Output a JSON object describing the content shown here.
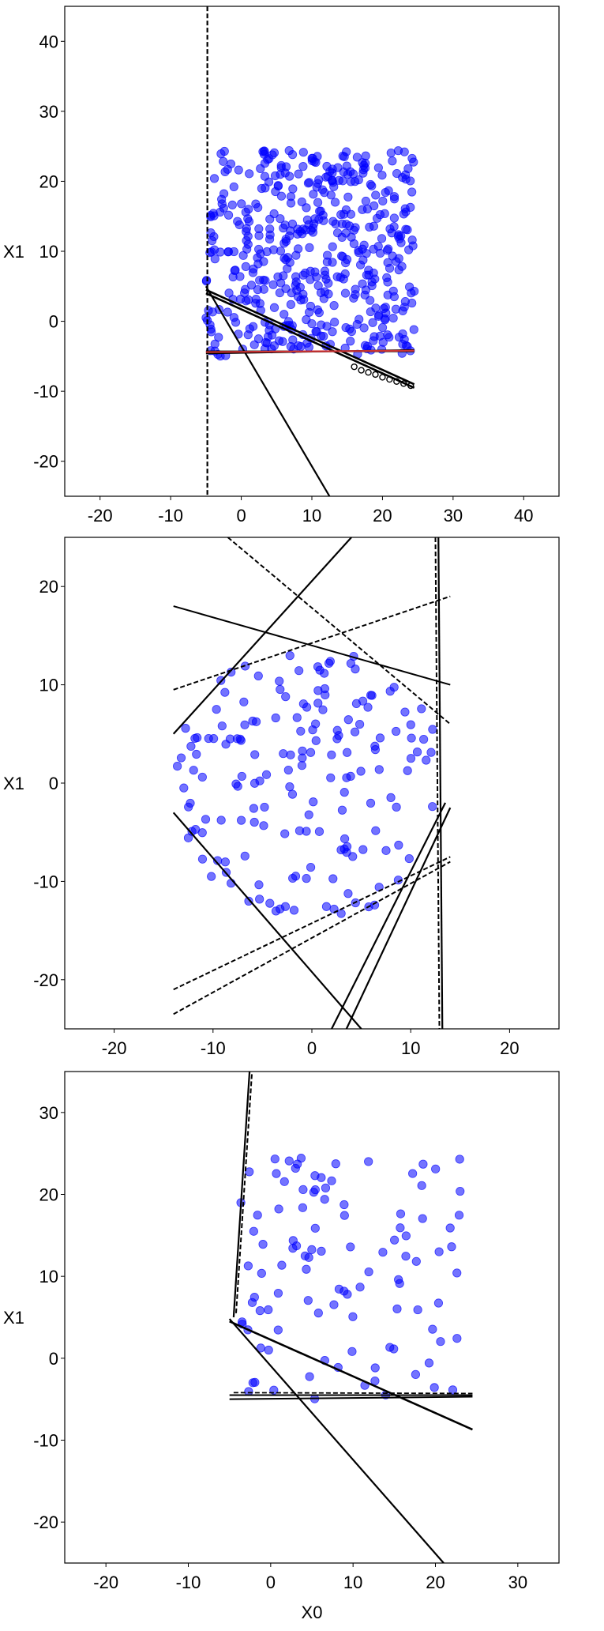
{
  "chart_data": [
    {
      "type": "scatter",
      "xlim": [
        -25,
        45
      ],
      "ylim": [
        -25,
        45
      ],
      "xticks": [
        -20,
        -10,
        0,
        10,
        20,
        30,
        40
      ],
      "yticks": [
        -20,
        -10,
        0,
        10,
        20,
        30,
        40
      ],
      "xlabel": "",
      "ylabel": "X1",
      "grid": false,
      "point_color": "#0000ff",
      "scatter": {
        "distribution": "uniform",
        "count": 480,
        "x_range": [
          -5,
          24.5
        ],
        "y_range": [
          -5,
          24.5
        ],
        "seed": 11
      },
      "lines": [
        {
          "x1": -4.8,
          "y1": 46,
          "x2": -4.8,
          "y2": -26,
          "style": "dashed",
          "color": "#000000",
          "width": 2.2
        },
        {
          "x1": -5,
          "y1": 5,
          "x2": 12.5,
          "y2": -25,
          "style": "solid",
          "color": "#000000",
          "width": 2.2
        },
        {
          "x1": -5,
          "y1": 4.5,
          "x2": 24.5,
          "y2": -9,
          "style": "solid",
          "color": "#000000",
          "width": 2.6
        },
        {
          "x1": -5,
          "y1": 4,
          "x2": 24.5,
          "y2": -9.5,
          "style": "solid",
          "color": "#000000",
          "width": 2.6
        },
        {
          "x1": -5,
          "y1": -4.3,
          "x2": 24.5,
          "y2": -4.3,
          "style": "solid",
          "color": "#000000",
          "width": 2
        },
        {
          "x1": -5,
          "y1": -4.6,
          "x2": 24.5,
          "y2": -4.1,
          "style": "solid",
          "color": "#000000",
          "width": 2
        },
        {
          "x1": -5,
          "y1": -4.4,
          "x2": 24.5,
          "y2": -4.2,
          "style": "solid",
          "color": "#cc3333",
          "width": 2.2
        }
      ],
      "markers": [
        {
          "x": 16,
          "y": -6.5
        },
        {
          "x": 17,
          "y": -7
        },
        {
          "x": 18,
          "y": -7.3
        },
        {
          "x": 19,
          "y": -7.6
        },
        {
          "x": 20,
          "y": -8
        },
        {
          "x": 21,
          "y": -8.3
        },
        {
          "x": 22,
          "y": -8.6
        },
        {
          "x": 23,
          "y": -8.9
        },
        {
          "x": 24,
          "y": -9.2
        }
      ]
    },
    {
      "type": "scatter",
      "xlim": [
        -25,
        25
      ],
      "ylim": [
        -25,
        25
      ],
      "xticks": [
        -20,
        -10,
        0,
        10,
        20
      ],
      "yticks": [
        -20,
        -10,
        0,
        10,
        20
      ],
      "xlabel": "",
      "ylabel": "X1",
      "grid": false,
      "point_color": "#0000ff",
      "scatter": {
        "distribution": "disc",
        "count": 170,
        "center": [
          0,
          0
        ],
        "radius": 14,
        "seed": 23
      },
      "lines": [
        {
          "x1": -14,
          "y1": 5,
          "x2": 4,
          "y2": 25,
          "style": "solid",
          "color": "#000000",
          "width": 2.2
        },
        {
          "x1": -14,
          "y1": 18,
          "x2": 14,
          "y2": 10,
          "style": "solid",
          "color": "#000000",
          "width": 2
        },
        {
          "x1": -14,
          "y1": 9.5,
          "x2": 14,
          "y2": 19,
          "style": "dashed",
          "color": "#000000",
          "width": 2
        },
        {
          "x1": -8.5,
          "y1": 25,
          "x2": 14,
          "y2": 6,
          "style": "dashed",
          "color": "#000000",
          "width": 2
        },
        {
          "x1": 12.8,
          "y1": 25,
          "x2": 13.2,
          "y2": -25,
          "style": "solid",
          "color": "#000000",
          "width": 2.2
        },
        {
          "x1": 12.5,
          "y1": 25,
          "x2": 12.9,
          "y2": -25,
          "style": "dashed",
          "color": "#000000",
          "width": 2
        },
        {
          "x1": -14,
          "y1": -3,
          "x2": 5,
          "y2": -25,
          "style": "solid",
          "color": "#000000",
          "width": 2.2
        },
        {
          "x1": -14,
          "y1": -21,
          "x2": 14,
          "y2": -7.5,
          "style": "dashed",
          "color": "#000000",
          "width": 2
        },
        {
          "x1": -14,
          "y1": -23.5,
          "x2": 14,
          "y2": -8,
          "style": "dashed",
          "color": "#000000",
          "width": 2
        },
        {
          "x1": 2,
          "y1": -25,
          "x2": 13.5,
          "y2": -2,
          "style": "solid",
          "color": "#000000",
          "width": 2.2
        },
        {
          "x1": 3.5,
          "y1": -25,
          "x2": 14,
          "y2": -2.5,
          "style": "solid",
          "color": "#000000",
          "width": 2.2
        }
      ],
      "markers": []
    },
    {
      "type": "scatter",
      "xlim": [
        -25,
        35
      ],
      "ylim": [
        -25,
        35
      ],
      "xticks": [
        -20,
        -10,
        0,
        10,
        20,
        30
      ],
      "yticks": [
        -20,
        -10,
        0,
        10,
        20,
        30
      ],
      "xlabel": "X0",
      "ylabel": "X1",
      "grid": false,
      "point_color": "#0000ff",
      "scatter": {
        "distribution": "uniform",
        "count": 105,
        "x_range": [
          -4,
          24.5
        ],
        "y_range": [
          -5,
          24.5
        ],
        "seed": 37
      },
      "lines": [
        {
          "x1": -4.5,
          "y1": 5,
          "x2": -2.5,
          "y2": 36,
          "style": "solid",
          "color": "#000000",
          "width": 2.2
        },
        {
          "x1": -4.2,
          "y1": 5.5,
          "x2": -2.2,
          "y2": 36,
          "style": "dashed",
          "color": "#000000",
          "width": 2
        },
        {
          "x1": -5,
          "y1": 4.8,
          "x2": 21,
          "y2": -25,
          "style": "solid",
          "color": "#000000",
          "width": 2.2
        },
        {
          "x1": -5,
          "y1": 4.5,
          "x2": 24.5,
          "y2": -8.7,
          "style": "solid",
          "color": "#000000",
          "width": 2.6
        },
        {
          "x1": -5,
          "y1": -4.5,
          "x2": 24.5,
          "y2": -4.5,
          "style": "solid",
          "color": "#000000",
          "width": 2
        },
        {
          "x1": -5,
          "y1": -5,
          "x2": 24.5,
          "y2": -4.7,
          "style": "solid",
          "color": "#000000",
          "width": 2
        },
        {
          "x1": -4.5,
          "y1": -4.2,
          "x2": 24.5,
          "y2": -4.3,
          "style": "dashed",
          "color": "#000000",
          "width": 1.8
        }
      ],
      "markers": []
    }
  ]
}
